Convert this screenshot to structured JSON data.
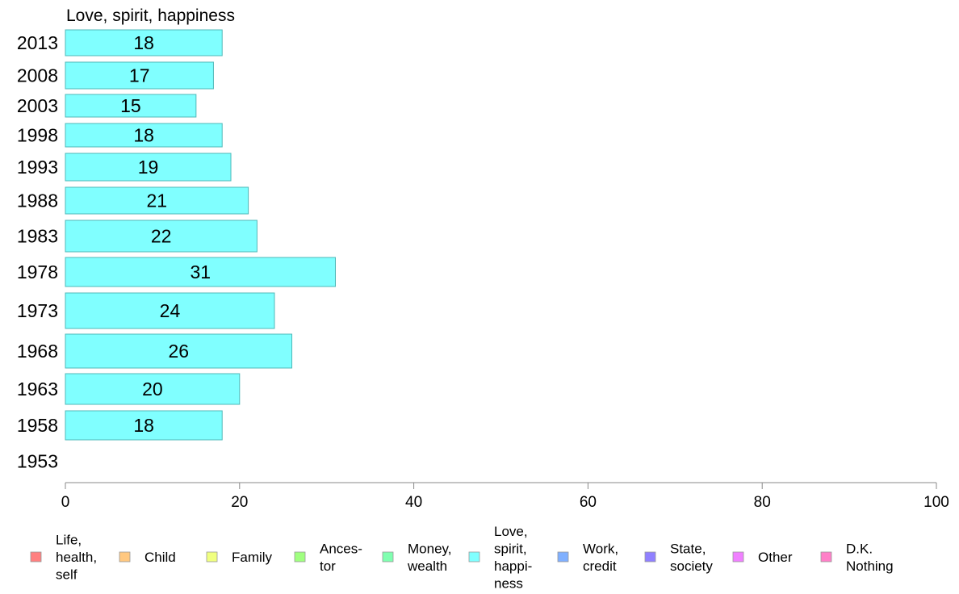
{
  "chart_data": {
    "type": "bar",
    "orientation": "horizontal",
    "title": "Love, spirit, happiness",
    "categories": [
      "2013",
      "2008",
      "2003",
      "1998",
      "1993",
      "1988",
      "1983",
      "1978",
      "1973",
      "1968",
      "1963",
      "1958",
      "1953"
    ],
    "series": [
      {
        "name": "Love, spirit, happiness",
        "values": [
          18,
          17,
          15,
          18,
          19,
          21,
          22,
          31,
          24,
          26,
          20,
          18,
          null
        ]
      }
    ],
    "value_labels": [
      "18",
      "17",
      "15",
      "18",
      "19",
      "21",
      "22",
      "31",
      "24",
      "26",
      "20",
      "18",
      ""
    ],
    "xlim": [
      0,
      100
    ],
    "xticks": [
      "0",
      "20",
      "40",
      "60",
      "80",
      "100"
    ],
    "bar_color": "#80ffff",
    "bar_stroke": "#4fb8b8",
    "grid": false,
    "legend_position": "bottom",
    "legend": [
      {
        "label": "Life, health, self",
        "lines": [
          "Life,",
          "health,",
          "self"
        ],
        "color": "#ff8080"
      },
      {
        "label": "Child",
        "lines": [
          "Child"
        ],
        "color": "#ffc880"
      },
      {
        "label": "Family",
        "lines": [
          "Family"
        ],
        "color": "#f0ff80"
      },
      {
        "label": "Ances-tor",
        "lines": [
          "Ances-",
          "tor"
        ],
        "color": "#a0ff80"
      },
      {
        "label": "Money, wealth",
        "lines": [
          "Money,",
          "wealth"
        ],
        "color": "#80ffb0"
      },
      {
        "label": "Love, spirit, happi-ness",
        "lines": [
          "Love,",
          "spirit,",
          "happi-",
          "ness"
        ],
        "color": "#80ffff"
      },
      {
        "label": "Work, credit",
        "lines": [
          "Work,",
          "credit"
        ],
        "color": "#80b0ff"
      },
      {
        "label": "State, society",
        "lines": [
          "State,",
          "society"
        ],
        "color": "#9080ff"
      },
      {
        "label": "Other",
        "lines": [
          "Other"
        ],
        "color": "#f080ff"
      },
      {
        "label": "D.K. Nothing",
        "lines": [
          "D.K.",
          "Nothing"
        ],
        "color": "#ff80c8"
      }
    ]
  }
}
